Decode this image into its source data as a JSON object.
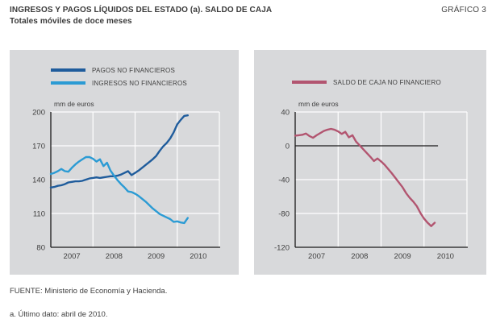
{
  "header": {
    "title": "INGRESOS Y PAGOS LÍQUIDOS DEL ESTADO (a). SALDO DE CAJA",
    "subtitle": "Totales móviles de doce meses",
    "figure_label": "GRÁFICO 3"
  },
  "footer": {
    "source": "FUENTE: Ministerio de Economía y Hacienda.",
    "footnote": "a. Último dato: abril de 2010."
  },
  "colors": {
    "panel_bg": "#d8d9db",
    "grid": "#ffffff",
    "axis": "#1a1a1a",
    "text": "#3f3f3f",
    "pagos": "#1f5c9c",
    "ingresos": "#2b9bd4",
    "saldo": "#b25570"
  },
  "chart_data": [
    {
      "type": "line",
      "unit_label": "mm de euros",
      "x_frequency": "monthly",
      "x_first": "2007-01",
      "x_last": "2010-04",
      "xlim": [
        2007,
        2011
      ],
      "ylim": [
        80,
        200
      ],
      "yticks": [
        80,
        110,
        140,
        170,
        200
      ],
      "xtick_labels": [
        "2007",
        "2008",
        "2009",
        "2010"
      ],
      "grid": true,
      "legend_position": "top-left",
      "zero_line": false,
      "series": [
        {
          "name": "PAGOS NO FINANCIEROS",
          "color_key": "pagos",
          "values": [
            133,
            133.5,
            134.5,
            135,
            136,
            137.5,
            138,
            138.5,
            138.5,
            139,
            140,
            141,
            141.5,
            142,
            141.5,
            142,
            142.5,
            143,
            143,
            143.5,
            144.5,
            146,
            147.5,
            144,
            146,
            148,
            150.5,
            153,
            155.5,
            158,
            161,
            165.5,
            169.5,
            172.5,
            176.5,
            182,
            189,
            193,
            196.5,
            197
          ]
        },
        {
          "name": "INGRESOS NO FINANCIEROS",
          "color_key": "ingresos",
          "values": [
            145,
            146,
            147.5,
            149.5,
            147.5,
            147,
            150.5,
            153.5,
            156,
            158,
            160,
            160,
            158.5,
            156,
            158,
            152,
            155,
            148,
            143.5,
            139.5,
            136,
            133,
            129.5,
            129,
            127.5,
            125.5,
            123,
            120.5,
            117.5,
            114.5,
            112,
            109.5,
            108,
            106.5,
            105,
            102.5,
            103,
            102,
            101.5,
            106
          ]
        }
      ]
    },
    {
      "type": "line",
      "unit_label": "mm de euros",
      "x_frequency": "monthly",
      "x_first": "2007-01",
      "x_last": "2010-04",
      "xlim": [
        2007,
        2011
      ],
      "ylim": [
        -120,
        40
      ],
      "yticks": [
        -120,
        -80,
        -40,
        0,
        40
      ],
      "xtick_labels": [
        "2007",
        "2008",
        "2009",
        "2010"
      ],
      "grid": true,
      "legend_position": "top-left",
      "zero_line": true,
      "series": [
        {
          "name": "SALDO DE CAJA NO FINANCIERO",
          "color_key": "saldo",
          "values": [
            12,
            12.5,
            13,
            14.5,
            11.5,
            9.5,
            12.5,
            15,
            17.5,
            19,
            20,
            19,
            17,
            14,
            16.5,
            10,
            12.5,
            5,
            0.5,
            -4,
            -8.5,
            -13,
            -18,
            -15,
            -18.5,
            -22.5,
            -27.5,
            -32.5,
            -38,
            -43.5,
            -49,
            -56,
            -61.5,
            -66,
            -71.5,
            -79.5,
            -86,
            -91,
            -95,
            -91
          ]
        }
      ]
    }
  ]
}
